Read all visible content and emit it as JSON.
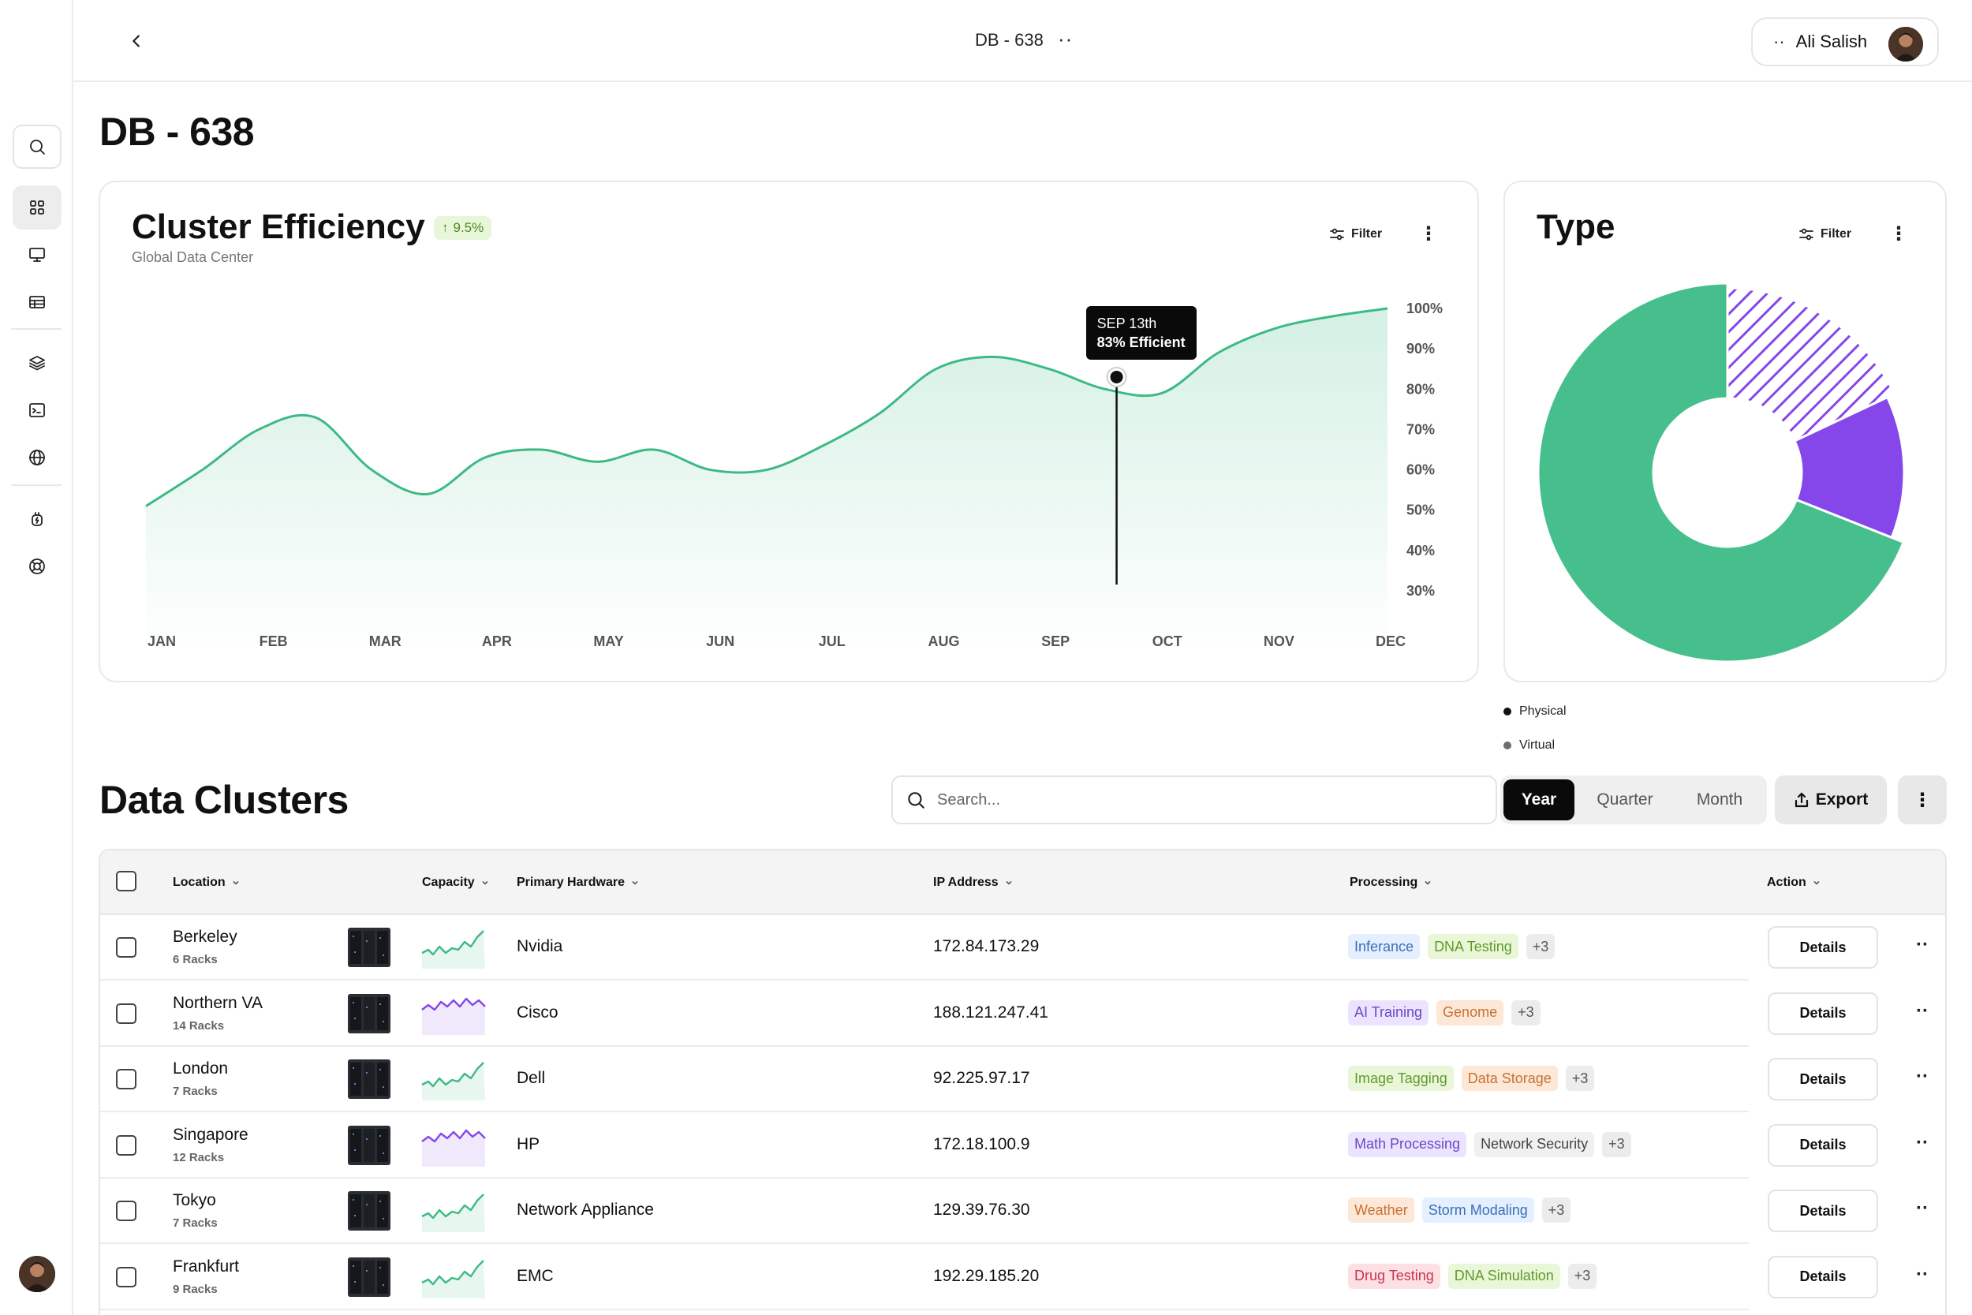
{
  "topbar": {
    "title": "DB - 638",
    "user_name": "Ali Salish"
  },
  "page_title": "DB - 638",
  "efficiency": {
    "title": "Cluster Efficiency",
    "change": "9.5%",
    "subtitle": "Global Data Center",
    "filter_label": "Filter",
    "tooltip_date": "SEP 13th",
    "tooltip_value": "83% Efficient"
  },
  "type_card": {
    "title": "Type",
    "filter_label": "Filter"
  },
  "chart_data": [
    {
      "type": "area",
      "title": "Cluster Efficiency",
      "categories": [
        "JAN",
        "FEB",
        "MAR",
        "APR",
        "MAY",
        "JUN",
        "JUL",
        "AUG",
        "SEP",
        "OCT",
        "NOV",
        "DEC"
      ],
      "y_ticks": [
        "100%",
        "90%",
        "80%",
        "70%",
        "60%",
        "50%",
        "40%",
        "30%"
      ],
      "ylim": [
        30,
        100
      ],
      "x": [
        0,
        0.5,
        1,
        1.5,
        2,
        2.5,
        3,
        3.5,
        4,
        4.5,
        5,
        5.5,
        6,
        6.5,
        7,
        7.5,
        8,
        8.5,
        9,
        9.5,
        10,
        10.5,
        11
      ],
      "values": [
        51,
        60,
        70,
        73,
        60,
        54,
        63,
        65,
        62,
        65,
        60,
        60,
        66,
        74,
        85,
        88,
        85,
        80,
        79,
        89,
        95,
        98,
        100
      ],
      "highlight": {
        "x": 8.6,
        "y": 83
      },
      "color": "#3dba84",
      "grid": false
    },
    {
      "type": "pie",
      "title": "Type",
      "labels": [
        "Physical",
        "Virtual"
      ],
      "slices": [
        {
          "label": "Physical",
          "value": 69,
          "color": "#46bf8c"
        },
        {
          "label": "Virtual",
          "value": 13,
          "color": "#8547ea"
        },
        {
          "label": "",
          "value": 18,
          "color": "#8547ea",
          "pattern": "hatched"
        }
      ],
      "legend": "bottom-left"
    }
  ],
  "legend": [
    {
      "label": "Physical",
      "color": "#111111"
    },
    {
      "label": "Virtual",
      "color": "#6e6e6e"
    }
  ],
  "clusters": {
    "title": "Data Clusters",
    "search_placeholder": "Search...",
    "segments": [
      "Year",
      "Quarter",
      "Month"
    ],
    "export_label": "Export",
    "columns": {
      "location": "Location",
      "capacity": "Capacity",
      "hardware": "Primary Hardware",
      "ip": "IP Address",
      "processing": "Processing",
      "action": "Action"
    },
    "details_label": "Details",
    "rows": [
      {
        "location": "Berkeley",
        "racks": "6 Racks",
        "hardware": "Nvidia",
        "ip": "172.84.173.29",
        "tags": [
          {
            "label": "Inferance",
            "style": "blue"
          },
          {
            "label": "DNA Testing",
            "style": "green"
          }
        ],
        "more": "+3",
        "spark": "green"
      },
      {
        "location": "Northern VA",
        "racks": "14 Racks",
        "hardware": "Cisco",
        "ip": "188.121.247.41",
        "tags": [
          {
            "label": "AI Training",
            "style": "purple"
          },
          {
            "label": "Genome",
            "style": "orange"
          }
        ],
        "more": "+3",
        "spark": "purple"
      },
      {
        "location": "London",
        "racks": "7 Racks",
        "hardware": "Dell",
        "ip": "92.225.97.17",
        "tags": [
          {
            "label": "Image Tagging",
            "style": "green"
          },
          {
            "label": "Data Storage",
            "style": "orange"
          }
        ],
        "more": "+3",
        "spark": "green"
      },
      {
        "location": "Singapore",
        "racks": "12 Racks",
        "hardware": "HP",
        "ip": "172.18.100.9",
        "tags": [
          {
            "label": "Math Processing",
            "style": "purple"
          },
          {
            "label": "Network Security",
            "style": "gray"
          }
        ],
        "more": "+3",
        "spark": "purple"
      },
      {
        "location": "Tokyo",
        "racks": "7 Racks",
        "hardware": "Network Appliance",
        "ip": "129.39.76.30",
        "tags": [
          {
            "label": "Weather",
            "style": "orange"
          },
          {
            "label": "Storm Modaling",
            "style": "blue"
          }
        ],
        "more": "+3",
        "spark": "green"
      },
      {
        "location": "Frankfurt",
        "racks": "9 Racks",
        "hardware": "EMC",
        "ip": "192.29.185.20",
        "tags": [
          {
            "label": "Drug Testing",
            "style": "red"
          },
          {
            "label": "DNA Simulation",
            "style": "green"
          }
        ],
        "more": "+3",
        "spark": "green"
      }
    ]
  }
}
